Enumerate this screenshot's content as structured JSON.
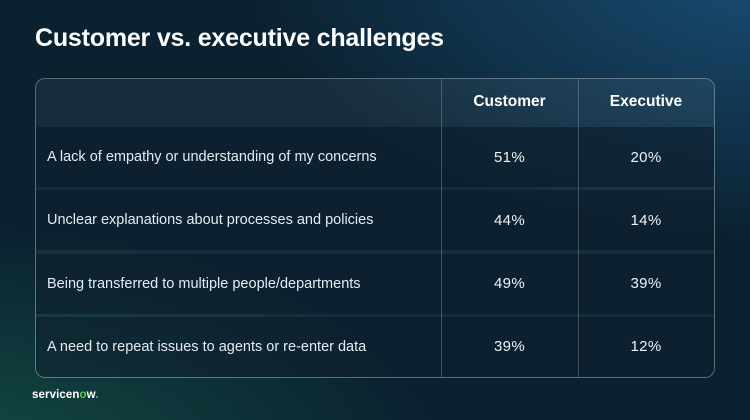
{
  "slide": {
    "title": "Customer vs. executive challenges"
  },
  "table": {
    "header": {
      "customer": "Customer",
      "executive": "Executive"
    },
    "rows": [
      {
        "label": "A lack of empathy or understanding of my concerns",
        "customer": "51%",
        "executive": "20%"
      },
      {
        "label": "Unclear explanations about processes and policies",
        "customer": "44%",
        "executive": "14%"
      },
      {
        "label": "Being transferred to multiple people/departments",
        "customer": "49%",
        "executive": "39%"
      },
      {
        "label": "A need to repeat issues to agents or re-enter data",
        "customer": "39%",
        "executive": "12%"
      }
    ]
  },
  "footer": {
    "logo_prefix": "servicen",
    "logo_accent": "o",
    "logo_suffix": "w",
    "logo_dot": "."
  },
  "colors": {
    "accent_green": "#63c74d",
    "background_navy": "#0b2130",
    "glow_blue": "#1b4f78",
    "glow_green": "#176e52",
    "row_overlay": "rgba(3,22,37,0.52)"
  },
  "chart_data": {
    "type": "table",
    "title": "Customer vs. executive challenges",
    "categories": [
      "A lack of empathy or understanding of my concerns",
      "Unclear explanations about processes and policies",
      "Being transferred to multiple people/departments",
      "A need to repeat issues to agents or re-enter data"
    ],
    "series": [
      {
        "name": "Customer",
        "values": [
          51,
          44,
          49,
          39
        ]
      },
      {
        "name": "Executive",
        "values": [
          20,
          14,
          39,
          12
        ]
      }
    ],
    "unit": "%",
    "legend_position": "column-headers",
    "grid": false
  }
}
